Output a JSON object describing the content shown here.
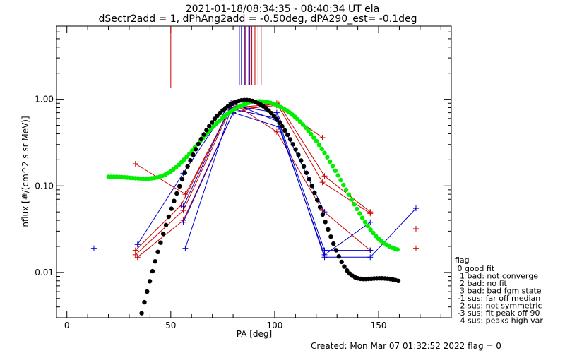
{
  "chart_data": {
    "type": "scatter",
    "title": "2021-01-18/08:34:35 - 08:40:34 UT ela",
    "subtitle": "dSectr2add = 1, dPhAng2add = -0.50deg, dPA290_est=  -0.1deg",
    "xlabel": "PA [deg]",
    "ylabel": "nflux [#/(cm^2 s sr MeV)]",
    "xlim": [
      -5,
      185
    ],
    "ylim": [
      0.003,
      7
    ],
    "yscale": "log",
    "x_ticks": [
      0,
      50,
      100,
      150
    ],
    "y_ticks": [
      0.01,
      0.1,
      1.0
    ],
    "x_tick_labels": [
      "0",
      "50",
      "100",
      "150"
    ],
    "y_tick_labels": [
      "0.01",
      "0.10",
      "1.00"
    ],
    "grid": false,
    "colors": {
      "red": "#cc0000",
      "blue": "#0000cc",
      "green": "#00ee00",
      "black": "#000000"
    },
    "red_marker_lines": [
      50,
      86,
      87.5,
      89,
      90.5,
      92,
      93.5
    ],
    "blue_marker_lines": [
      83,
      84,
      85.5,
      88,
      90
    ],
    "series": [
      {
        "color": "red",
        "style": "line+cross",
        "points": [
          [
            33,
            0.018
          ],
          [
            55,
            0.06
          ],
          [
            78,
            0.75
          ],
          [
            101,
            0.85
          ],
          [
            123,
            0.36
          ]
        ]
      },
      {
        "color": "red",
        "style": "line+cross",
        "points": [
          [
            33,
            0.016
          ],
          [
            56,
            0.052
          ],
          [
            79,
            0.8
          ],
          [
            102,
            0.88
          ],
          [
            124,
            0.13
          ],
          [
            146,
            0.05
          ]
        ]
      },
      {
        "color": "red",
        "style": "line+cross",
        "points": [
          [
            34,
            0.015
          ],
          [
            56,
            0.04
          ],
          [
            80,
            0.7
          ],
          [
            101,
            0.9
          ],
          [
            123,
            0.11
          ],
          [
            146,
            0.048
          ]
        ]
      },
      {
        "color": "red",
        "style": "line+cross",
        "points": [
          [
            33,
            0.18
          ],
          [
            57,
            0.08
          ],
          [
            80,
            0.9
          ],
          [
            101,
            0.42
          ],
          [
            123,
            0.052
          ],
          [
            146,
            0.018
          ]
        ]
      },
      {
        "color": "red",
        "style": "cross",
        "points": [
          [
            168,
            0.032
          ],
          [
            168,
            0.019
          ]
        ]
      },
      {
        "color": "blue",
        "style": "line+cross",
        "points": [
          [
            34,
            0.021
          ],
          [
            56,
            0.14
          ],
          [
            79,
            0.92
          ],
          [
            102,
            0.55
          ],
          [
            124,
            0.018
          ],
          [
            146,
            0.018
          ]
        ]
      },
      {
        "color": "blue",
        "style": "line+cross",
        "points": [
          [
            57,
            0.019
          ],
          [
            79,
            0.78
          ],
          [
            101,
            0.6
          ],
          [
            124,
            0.015
          ],
          [
            146,
            0.015
          ],
          [
            168,
            0.055
          ]
        ]
      },
      {
        "color": "blue",
        "style": "line+cross",
        "points": [
          [
            56,
            0.038
          ],
          [
            80,
            0.7
          ],
          [
            102,
            0.48
          ],
          [
            124,
            0.016
          ],
          [
            146,
            0.038
          ]
        ]
      },
      {
        "color": "blue",
        "style": "line+cross",
        "points": [
          [
            56,
            0.058
          ],
          [
            79,
            0.85
          ],
          [
            101,
            0.7
          ],
          [
            124,
            0.05
          ]
        ]
      },
      {
        "color": "blue",
        "style": "cross",
        "points": [
          [
            13,
            0.019
          ]
        ]
      },
      {
        "color": "green",
        "style": "dots",
        "curve": "gaussian-plus-background",
        "x": [
          20,
          160
        ]
      },
      {
        "color": "black",
        "style": "dots",
        "curve": "gaussian-plus-background",
        "x": [
          36,
          160
        ]
      }
    ],
    "legend": {
      "position": "bottom-right",
      "title": "flag",
      "entries": [
        " 0 good fit",
        "  1 bad: not converge",
        "  2 bad: no fit",
        "  3 bad: bad fgm state",
        " -1 sus: far off median",
        " -2 sus: not symmetric",
        " -3 sus: fit peak off 90",
        " -4 sus: peaks high var"
      ]
    },
    "footer": "Created: Mon Mar 07 01:32:52 2022   flag = 0"
  }
}
